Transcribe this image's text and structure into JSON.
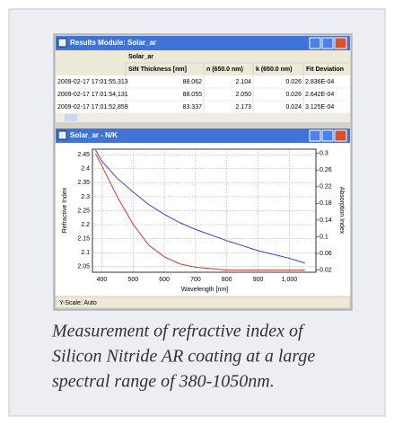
{
  "results_window": {
    "title": "Results Module: Solar_ar",
    "group_header": "Solar_ar",
    "columns": [
      "SiN Thickness [nm]",
      "n (650.0 nm)",
      "k (650.0 nm)",
      "Fit Deviation"
    ],
    "rows": [
      [
        "2009-02-17 17:01:55,313",
        "88.062",
        "2.104",
        "0.026",
        "2.836E-04"
      ],
      [
        "2009-02-17 17:01:54,131",
        "88.055",
        "2.050",
        "0.026",
        "2.642E-04"
      ],
      [
        "2009-02-17 17:01:52,859",
        "83.337",
        "2.173",
        "0.024",
        "3.125E-04"
      ]
    ]
  },
  "chart_window": {
    "title": "Solar_ar - N/K",
    "status": "Y-Scale: Auto"
  },
  "chart_data": {
    "type": "line",
    "xlabel": "Wavelength [nm]",
    "ylabel": "Refractive Index",
    "y2label": "Absorption Index",
    "x": [
      380,
      400,
      450,
      500,
      550,
      600,
      650,
      700,
      800,
      900,
      1000,
      1050
    ],
    "series": [
      {
        "color": "#3b3bd6",
        "values": [
          2.467,
          2.427,
          2.365,
          2.317,
          2.272,
          2.237,
          2.207,
          2.183,
          2.143,
          2.107,
          2.08,
          2.063
        ]
      },
      {
        "color": "#e03030",
        "axis": "y2",
        "values": [
          0.299,
          0.27,
          0.195,
          0.13,
          0.08,
          0.052,
          0.035,
          0.027,
          0.02,
          0.02,
          0.02,
          0.02
        ]
      }
    ],
    "xlim": [
      370,
      1085
    ],
    "ylim": [
      2.03,
      2.47
    ],
    "y2lim": [
      0.015,
      0.31
    ],
    "xticks": [
      400,
      500,
      600,
      700,
      800,
      900,
      {
        "value": 1000,
        "label": "1,000"
      }
    ],
    "yticks": [
      2.05,
      2.1,
      2.15,
      2.2,
      2.25,
      2.3,
      2.35,
      2.4,
      2.45
    ],
    "y2ticks": [
      0.02,
      0.06,
      0.1,
      0.14,
      0.18,
      0.22,
      0.26,
      0.3
    ],
    "grid": true
  },
  "caption": [
    "Measurement of refractive index of",
    "Silicon Nitride AR coating at a large",
    "spectral range of 380-1050nm."
  ]
}
